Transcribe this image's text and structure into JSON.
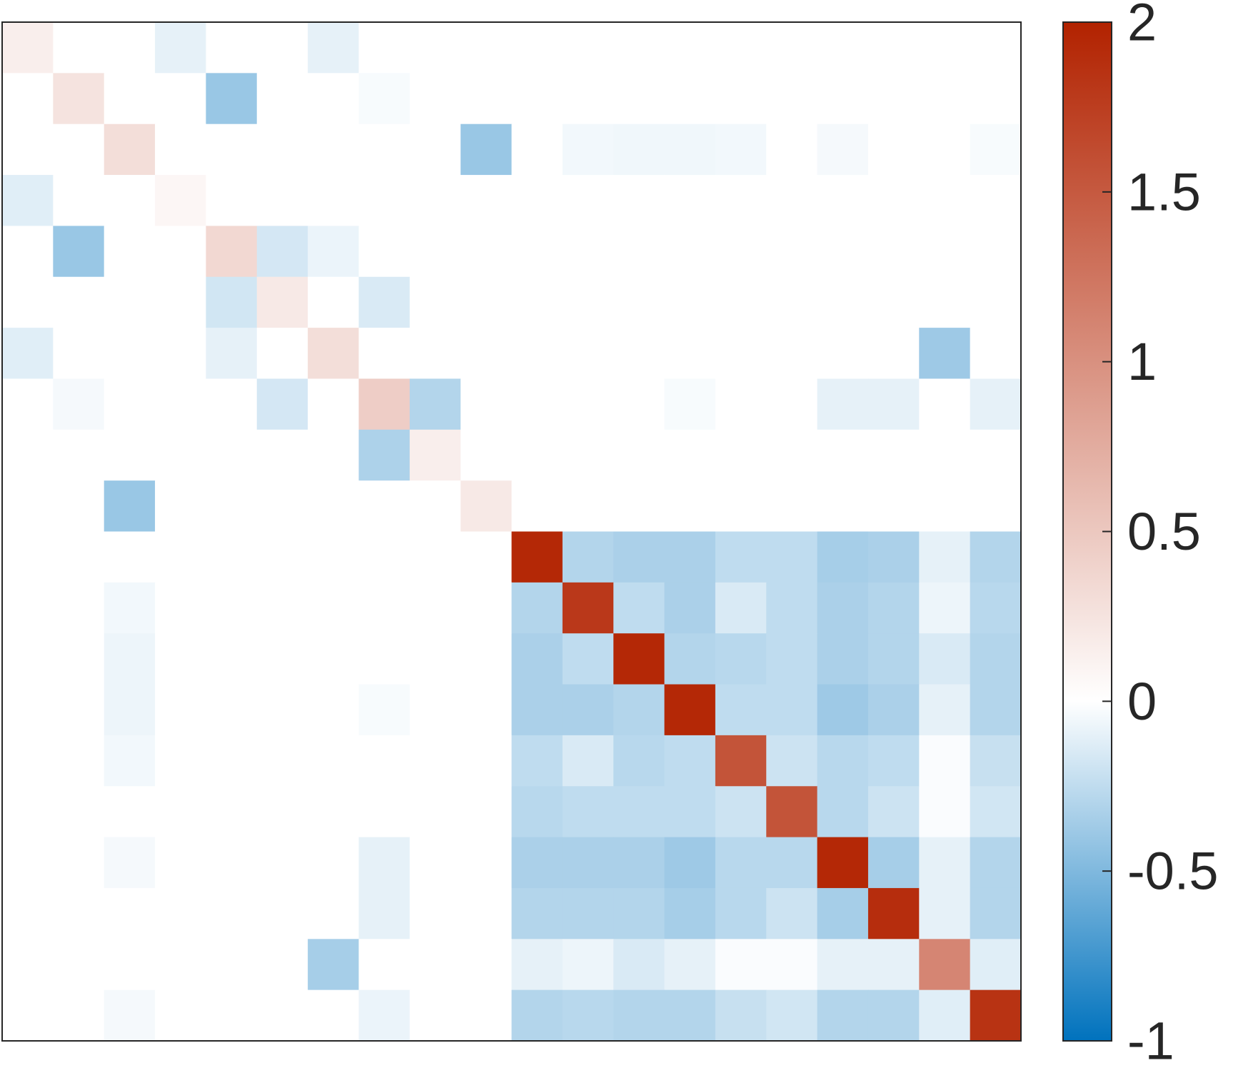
{
  "chart_data": {
    "type": "heatmap",
    "title": "",
    "xlabel": "",
    "ylabel": "",
    "n_rows": 20,
    "n_cols": 20,
    "values": [
      [
        0.15,
        0,
        0,
        -0.1,
        0,
        0,
        -0.1,
        0,
        0,
        0,
        0,
        0,
        0,
        0,
        0,
        0,
        0,
        0,
        0,
        0
      ],
      [
        0,
        0.25,
        0,
        0,
        -0.4,
        0,
        0,
        -0.03,
        0,
        0,
        0,
        0,
        0,
        0,
        0,
        0,
        0,
        0,
        0,
        0
      ],
      [
        0,
        0,
        0.3,
        0,
        0,
        0,
        0,
        0,
        0,
        -0.4,
        0,
        -0.05,
        -0.06,
        -0.06,
        -0.05,
        0,
        -0.04,
        0,
        0,
        -0.03
      ],
      [
        -0.12,
        0,
        0,
        0.08,
        0,
        0,
        0,
        0,
        0,
        0,
        0,
        0,
        0,
        0,
        0,
        0,
        0,
        0,
        0,
        0
      ],
      [
        0,
        -0.4,
        0,
        0,
        0.35,
        -0.17,
        -0.08,
        0,
        0,
        0,
        0,
        0,
        0,
        0,
        0,
        0,
        0,
        0,
        0,
        0
      ],
      [
        0,
        0,
        0,
        0,
        -0.18,
        0.2,
        0,
        -0.15,
        0,
        0,
        0,
        0,
        0,
        0,
        0,
        0,
        0,
        0,
        0,
        0
      ],
      [
        -0.12,
        0,
        0,
        0,
        -0.1,
        0,
        0.3,
        0,
        0,
        0,
        0,
        0,
        0,
        0,
        0,
        0,
        0,
        0,
        -0.38,
        0
      ],
      [
        0,
        -0.04,
        0,
        0,
        0,
        -0.17,
        0,
        0.45,
        -0.3,
        0,
        0,
        0,
        0,
        -0.03,
        0,
        0,
        -0.1,
        -0.1,
        0,
        -0.1
      ],
      [
        0,
        0,
        0,
        0,
        0,
        0,
        0,
        -0.32,
        0.15,
        0,
        0,
        0,
        0,
        0,
        0,
        0,
        0,
        0,
        0,
        0
      ],
      [
        0,
        0,
        -0.4,
        0,
        0,
        0,
        0,
        0,
        0,
        0.2,
        0,
        0,
        0,
        0,
        0,
        0,
        0,
        0,
        0,
        0
      ],
      [
        0,
        0,
        0,
        0,
        0,
        0,
        0,
        0,
        0,
        0,
        1.95,
        -0.3,
        -0.33,
        -0.33,
        -0.25,
        -0.25,
        -0.35,
        -0.33,
        -0.1,
        -0.3
      ],
      [
        0,
        0,
        -0.05,
        0,
        0,
        0,
        0,
        0,
        0,
        0,
        -0.3,
        1.8,
        -0.25,
        -0.33,
        -0.15,
        -0.25,
        -0.33,
        -0.3,
        -0.07,
        -0.28
      ],
      [
        0,
        0,
        -0.07,
        0,
        0,
        0,
        0,
        0,
        0,
        0,
        -0.33,
        -0.25,
        1.95,
        -0.3,
        -0.28,
        -0.25,
        -0.33,
        -0.3,
        -0.15,
        -0.3
      ],
      [
        0,
        0,
        -0.07,
        0,
        0,
        0,
        0,
        -0.03,
        0,
        0,
        -0.33,
        -0.33,
        -0.3,
        1.95,
        -0.25,
        -0.25,
        -0.38,
        -0.33,
        -0.1,
        -0.3
      ],
      [
        0,
        0,
        -0.05,
        0,
        0,
        0,
        0,
        0,
        0,
        0,
        -0.25,
        -0.15,
        -0.28,
        -0.25,
        1.55,
        -0.2,
        -0.28,
        -0.25,
        -0.02,
        -0.22
      ],
      [
        0,
        0,
        0,
        0,
        0,
        0,
        0,
        0,
        0,
        0,
        -0.28,
        -0.25,
        -0.25,
        -0.25,
        -0.2,
        1.55,
        -0.28,
        -0.2,
        -0.02,
        -0.18
      ],
      [
        0,
        0,
        -0.04,
        0,
        0,
        0,
        0,
        -0.1,
        0,
        0,
        -0.33,
        -0.33,
        -0.33,
        -0.38,
        -0.28,
        -0.28,
        1.95,
        -0.35,
        -0.1,
        -0.3
      ],
      [
        0,
        0,
        0,
        0,
        0,
        0,
        0,
        -0.1,
        0,
        0,
        -0.3,
        -0.3,
        -0.3,
        -0.35,
        -0.28,
        -0.2,
        -0.35,
        1.9,
        -0.1,
        -0.3
      ],
      [
        0,
        0,
        0,
        0,
        0,
        0,
        -0.35,
        0,
        0,
        0,
        -0.1,
        -0.07,
        -0.15,
        -0.1,
        -0.02,
        -0.02,
        -0.1,
        -0.1,
        1.1,
        -0.12
      ],
      [
        0,
        0,
        -0.04,
        0,
        0,
        0,
        0,
        -0.08,
        0,
        0,
        -0.3,
        -0.28,
        -0.3,
        -0.3,
        -0.22,
        -0.18,
        -0.3,
        -0.3,
        -0.12,
        1.85
      ]
    ],
    "colorbar": {
      "min": -1,
      "max": 2,
      "ticks": [
        2,
        1.5,
        1,
        0.5,
        0,
        -0.5,
        -1
      ],
      "tick_labels": [
        "2",
        "1.5",
        "1",
        "0.5",
        "0",
        "-0.5",
        "-1"
      ],
      "low_color": "#0072bd",
      "zero_color": "#ffffff",
      "high_color": "#b22200",
      "placement": "right"
    },
    "grid": false
  }
}
